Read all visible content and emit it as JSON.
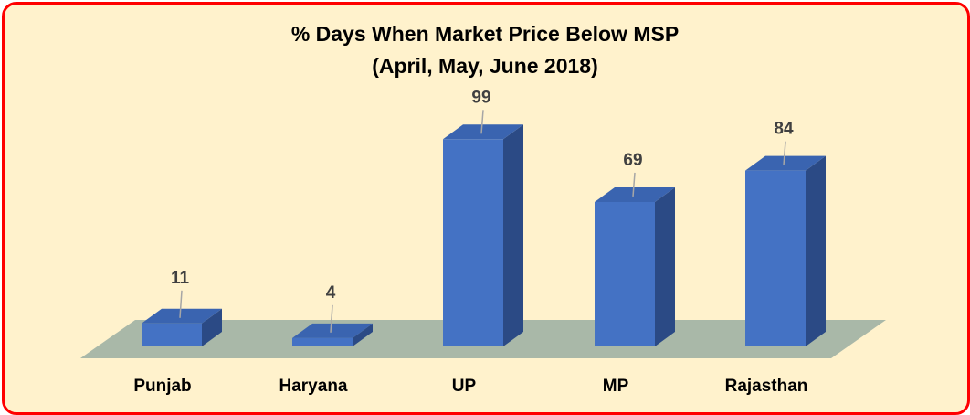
{
  "chart_data": {
    "type": "bar",
    "title": "% Days When Market Price Below MSP",
    "subtitle": "(April, May, June 2018)",
    "categories": [
      "Punjab",
      "Haryana",
      "UP",
      "MP",
      "Rajasthan"
    ],
    "values": [
      11,
      4,
      99,
      69,
      84
    ],
    "ylim": [
      0,
      100
    ],
    "grid": false,
    "legend": "none",
    "style": "3d-column",
    "colors": {
      "bar_front": "#4472c4",
      "bar_top": "#3a64b0",
      "bar_side": "#2b4a85",
      "floor": "#a9b8a8",
      "background": "#fff2cc",
      "border": "#ff0000",
      "leader_line": "#a6a6a6"
    }
  }
}
